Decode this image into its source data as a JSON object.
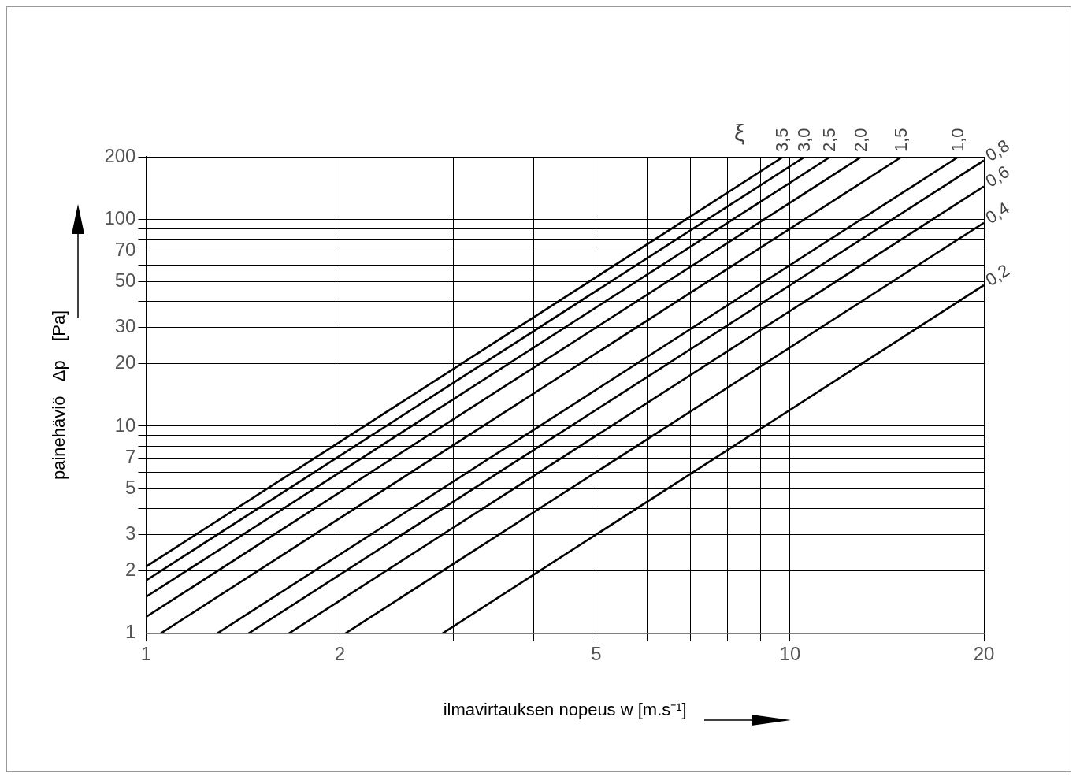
{
  "chart_data": {
    "type": "line",
    "xlabel": "ilmavirtauksen nopeus w [m.s⁻¹]",
    "ylabel": "painehäviö   Δp    [Pa]",
    "annotations": [
      "ξ"
    ],
    "log": "xy",
    "grid": true,
    "legend": false,
    "marker": "none",
    "line_style": "solid",
    "xlim": [
      1,
      20
    ],
    "xticks": [
      1,
      2,
      {
        "value": 3,
        "label": null
      },
      {
        "value": 4,
        "label": null
      },
      5,
      {
        "value": 6,
        "label": null
      },
      {
        "value": 7,
        "label": null
      },
      {
        "value": 8,
        "label": null
      },
      {
        "value": 9,
        "label": null
      },
      10,
      20
    ],
    "ylim": [
      1,
      200
    ],
    "yticks": [
      1,
      2,
      3,
      {
        "value": 4,
        "label": null
      },
      5,
      {
        "value": 6,
        "label": null
      },
      7,
      {
        "value": 8,
        "label": null
      },
      {
        "value": 9,
        "label": null
      },
      10,
      20,
      30,
      {
        "value": 40,
        "label": null
      },
      50,
      {
        "value": 60,
        "label": null
      },
      70,
      {
        "value": 80,
        "label": null
      },
      {
        "value": 90,
        "label": null
      },
      100,
      200
    ],
    "series": [
      {
        "name": "3,5",
        "color": "#000000",
        "x": [
          1,
          9.76
        ],
        "values": [
          2.1,
          200
        ]
      },
      {
        "name": "3,0",
        "color": "#000000",
        "x": [
          1,
          10.54
        ],
        "values": [
          1.8,
          200
        ]
      },
      {
        "name": "2,5",
        "color": "#000000",
        "x": [
          1,
          11.55
        ],
        "values": [
          1.5,
          200
        ]
      },
      {
        "name": "2,0",
        "color": "#000000",
        "x": [
          1,
          12.91
        ],
        "values": [
          1.2,
          200
        ]
      },
      {
        "name": "1,5",
        "color": "#000000",
        "x": [
          1.054,
          14.91
        ],
        "values": [
          1,
          200
        ]
      },
      {
        "name": "1,0",
        "color": "#000000",
        "x": [
          1.29,
          18.26
        ],
        "values": [
          1,
          200
        ]
      },
      {
        "name": "0,8",
        "color": "#000000",
        "x": [
          1.443,
          20
        ],
        "values": [
          1,
          192
        ]
      },
      {
        "name": "0,6",
        "color": "#000000",
        "x": [
          1.667,
          20
        ],
        "values": [
          1,
          144
        ]
      },
      {
        "name": "0,4",
        "color": "#000000",
        "x": [
          2.04,
          20
        ],
        "values": [
          1,
          96
        ]
      },
      {
        "name": "0,2",
        "color": "#000000",
        "x": [
          2.887,
          20
        ],
        "values": [
          1,
          48
        ]
      }
    ]
  }
}
